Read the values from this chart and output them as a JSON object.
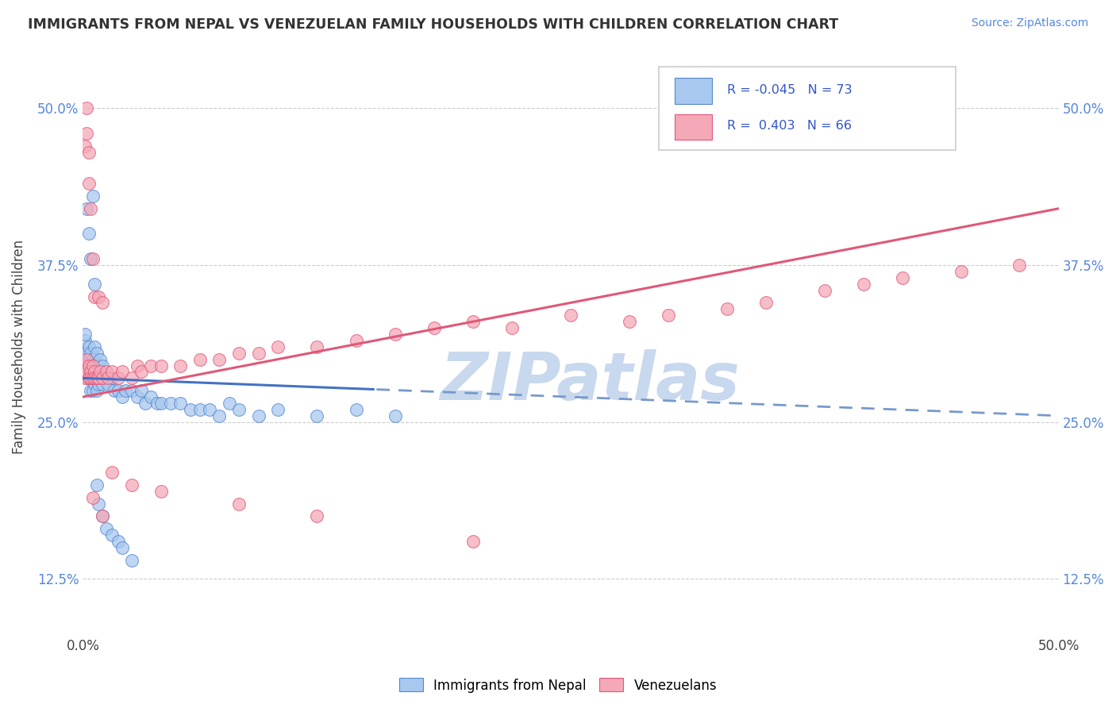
{
  "title": "IMMIGRANTS FROM NEPAL VS VENEZUELAN FAMILY HOUSEHOLDS WITH CHILDREN CORRELATION CHART",
  "source_text": "Source: ZipAtlas.com",
  "ylabel": "Family Households with Children",
  "legend_nepal": "Immigrants from Nepal",
  "legend_venezuelan": "Venezuelans",
  "R_nepal": -0.045,
  "N_nepal": 73,
  "R_venezuelan": 0.403,
  "N_venezuelan": 66,
  "xlim": [
    0.0,
    0.5
  ],
  "ylim": [
    0.08,
    0.54
  ],
  "yticks": [
    0.125,
    0.25,
    0.375,
    0.5
  ],
  "ytick_labels": [
    "12.5%",
    "25.0%",
    "37.5%",
    "50.0%"
  ],
  "xtick_labels_left": "0.0%",
  "xtick_labels_right": "50.0%",
  "color_nepal": "#a8c8f0",
  "color_venezuelan": "#f4a8b8",
  "edge_nepal": "#5588cc",
  "edge_venezuelan": "#e05878",
  "trendline_nepal_solid": "#4472c4",
  "trendline_nepal_dashed": "#7799cc",
  "trendline_venezuelan": "#e05878",
  "watermark": "ZIPatlas",
  "watermark_color": "#c8d8ee",
  "nepal_x": [
    0.001,
    0.001,
    0.001,
    0.001,
    0.001,
    0.002,
    0.002,
    0.002,
    0.002,
    0.003,
    0.003,
    0.003,
    0.003,
    0.004,
    0.004,
    0.004,
    0.004,
    0.005,
    0.005,
    0.005,
    0.005,
    0.006,
    0.006,
    0.006,
    0.007,
    0.007,
    0.007,
    0.008,
    0.008,
    0.009,
    0.009,
    0.01,
    0.01,
    0.012,
    0.013,
    0.015,
    0.016,
    0.018,
    0.02,
    0.022,
    0.025,
    0.028,
    0.03,
    0.032,
    0.035,
    0.038,
    0.04,
    0.045,
    0.05,
    0.055,
    0.06,
    0.065,
    0.07,
    0.075,
    0.08,
    0.09,
    0.1,
    0.12,
    0.14,
    0.16,
    0.002,
    0.003,
    0.004,
    0.005,
    0.006,
    0.007,
    0.008,
    0.01,
    0.012,
    0.015,
    0.018,
    0.02,
    0.025
  ],
  "nepal_y": [
    0.295,
    0.305,
    0.315,
    0.32,
    0.29,
    0.305,
    0.295,
    0.29,
    0.285,
    0.31,
    0.3,
    0.295,
    0.285,
    0.305,
    0.295,
    0.285,
    0.275,
    0.3,
    0.295,
    0.285,
    0.275,
    0.31,
    0.295,
    0.28,
    0.305,
    0.29,
    0.275,
    0.295,
    0.28,
    0.3,
    0.285,
    0.295,
    0.28,
    0.285,
    0.28,
    0.285,
    0.275,
    0.275,
    0.27,
    0.275,
    0.275,
    0.27,
    0.275,
    0.265,
    0.27,
    0.265,
    0.265,
    0.265,
    0.265,
    0.26,
    0.26,
    0.26,
    0.255,
    0.265,
    0.26,
    0.255,
    0.26,
    0.255,
    0.26,
    0.255,
    0.42,
    0.4,
    0.38,
    0.43,
    0.36,
    0.2,
    0.185,
    0.175,
    0.165,
    0.16,
    0.155,
    0.15,
    0.14
  ],
  "venezuela_x": [
    0.001,
    0.001,
    0.002,
    0.002,
    0.003,
    0.003,
    0.004,
    0.004,
    0.005,
    0.005,
    0.006,
    0.006,
    0.007,
    0.008,
    0.009,
    0.01,
    0.012,
    0.013,
    0.015,
    0.018,
    0.02,
    0.025,
    0.028,
    0.03,
    0.035,
    0.04,
    0.05,
    0.06,
    0.07,
    0.08,
    0.09,
    0.1,
    0.12,
    0.14,
    0.16,
    0.18,
    0.2,
    0.22,
    0.25,
    0.28,
    0.3,
    0.33,
    0.35,
    0.38,
    0.4,
    0.42,
    0.45,
    0.48,
    0.001,
    0.002,
    0.003,
    0.004,
    0.005,
    0.006,
    0.008,
    0.01,
    0.015,
    0.025,
    0.04,
    0.08,
    0.12,
    0.2,
    0.002,
    0.003,
    0.005,
    0.01
  ],
  "venezuela_y": [
    0.295,
    0.285,
    0.3,
    0.29,
    0.295,
    0.285,
    0.29,
    0.285,
    0.295,
    0.285,
    0.29,
    0.285,
    0.285,
    0.285,
    0.29,
    0.285,
    0.29,
    0.285,
    0.29,
    0.285,
    0.29,
    0.285,
    0.295,
    0.29,
    0.295,
    0.295,
    0.295,
    0.3,
    0.3,
    0.305,
    0.305,
    0.31,
    0.31,
    0.315,
    0.32,
    0.325,
    0.33,
    0.325,
    0.335,
    0.33,
    0.335,
    0.34,
    0.345,
    0.355,
    0.36,
    0.365,
    0.37,
    0.375,
    0.47,
    0.5,
    0.44,
    0.42,
    0.38,
    0.35,
    0.35,
    0.345,
    0.21,
    0.2,
    0.195,
    0.185,
    0.175,
    0.155,
    0.48,
    0.465,
    0.19,
    0.175
  ]
}
